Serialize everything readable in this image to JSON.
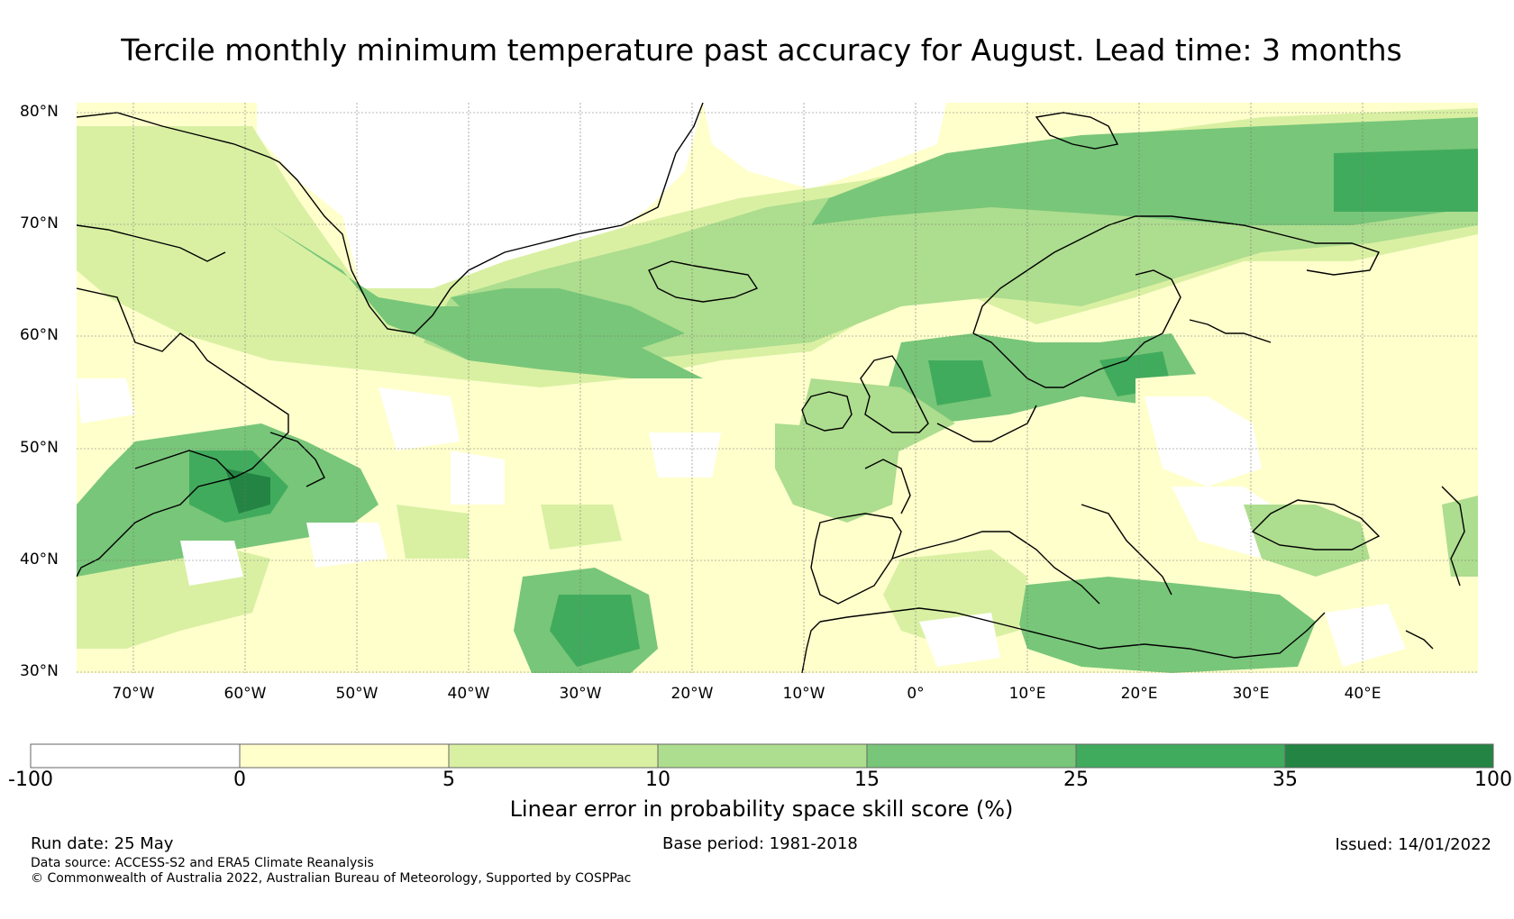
{
  "title": "Tercile monthly minimum temperature past accuracy for August. Lead time: 3 months",
  "map": {
    "region": "North Atlantic / Europe",
    "lon_range": [
      -75,
      50
    ],
    "lat_range": [
      30,
      80
    ],
    "lat_labels": [
      "80°N",
      "70°N",
      "60°N",
      "50°N",
      "40°N",
      "30°N"
    ],
    "lon_labels": [
      "70°W",
      "60°W",
      "50°W",
      "40°W",
      "30°W",
      "20°W",
      "10°W",
      "0°",
      "10°E",
      "20°E",
      "30°E",
      "40°E"
    ]
  },
  "colorbar": {
    "boundaries": [
      "-100",
      "0",
      "5",
      "10",
      "15",
      "25",
      "35",
      "100"
    ],
    "colors": [
      "#ffffff",
      "#ffffcc",
      "#d9f0a3",
      "#addd8e",
      "#78c679",
      "#41ab5d",
      "#238443"
    ],
    "label": "Linear error in probability space skill score (%)"
  },
  "footer": {
    "run_date": "Run date: 25 May",
    "base_period": "Base period: 1981-2018",
    "issued": "Issued: 14/01/2022",
    "data_source": "Data source: ACCESS-S2 and ERA5 Climate Reanalysis",
    "copyright": "© Commonwealth of Australia 2022, Australian Bureau of Meteorology, Supported by COSPPac"
  }
}
